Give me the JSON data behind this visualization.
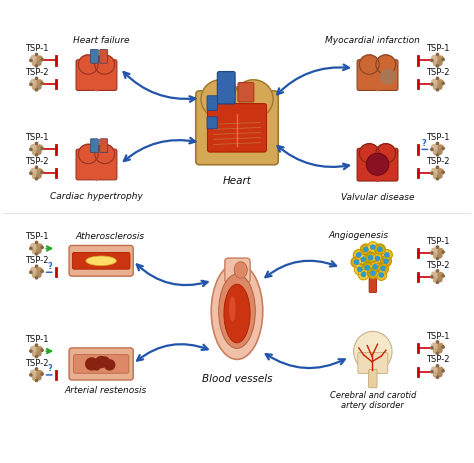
{
  "bg_color": "#ffffff",
  "blue": "#2255aa",
  "red": "#cc0000",
  "green": "#22aa22",
  "dblue": "#3366bb",
  "black": "#111111",
  "gray": "#888888",
  "figsize": [
    4.74,
    4.64
  ],
  "dpi": 100,
  "labels": {
    "heart_failure": "Heart failure",
    "cardiac_hypertrophy": "Cardiac hypertrophy",
    "heart": "Heart",
    "myocardial_infarction": "Myocardial infarction",
    "valvular_disease": "Valvular disease",
    "atherosclerosis": "Atherosclerosis",
    "arterial_restenosis": "Arterial restenosis",
    "blood_vessels": "Blood vessels",
    "angiogenesis": "Angiogenesis",
    "cerebral": "Cerebral and carotid\nartery disorder",
    "tsp1": "TSP-1",
    "tsp2": "TSP-2"
  }
}
